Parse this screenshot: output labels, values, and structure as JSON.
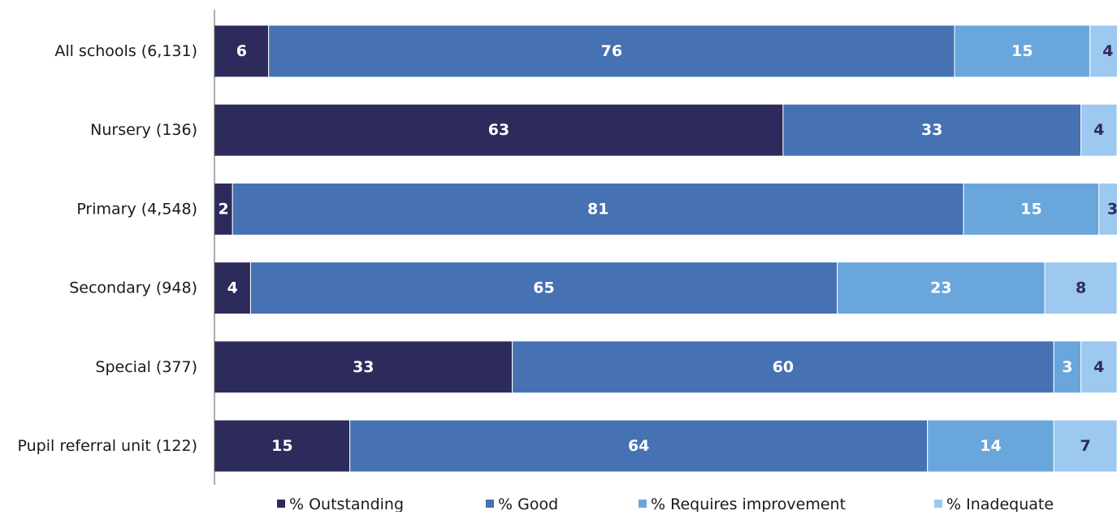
{
  "chart_data": {
    "type": "bar",
    "orientation": "horizontal",
    "stacked": true,
    "title": "",
    "xlabel": "",
    "ylabel": "",
    "xlim": [
      0,
      100
    ],
    "grid": false,
    "legend_position": "bottom",
    "categories": [
      "All schools (6,131)",
      "Nursery (136)",
      "Primary (4,548)",
      "Secondary (948)",
      "Special  (377)",
      "Pupil referral unit (122)"
    ],
    "series": [
      {
        "name": "% Outstanding",
        "color": "#2d2b5c",
        "label_color": "#ffffff",
        "values": [
          6,
          63,
          2,
          4,
          33,
          15
        ]
      },
      {
        "name": "% Good",
        "color": "#4671b2",
        "label_color": "#ffffff",
        "values": [
          76,
          33,
          81,
          65,
          60,
          64
        ]
      },
      {
        "name": "% Requires improvement",
        "color": "#69a6dc",
        "label_color": "#ffffff",
        "values": [
          15,
          0,
          15,
          23,
          3,
          14
        ]
      },
      {
        "name": "% Inadequate",
        "color": "#9dc8ef",
        "label_color": "#2d2b5c",
        "values": [
          4,
          4,
          3,
          8,
          4,
          7
        ]
      }
    ]
  }
}
